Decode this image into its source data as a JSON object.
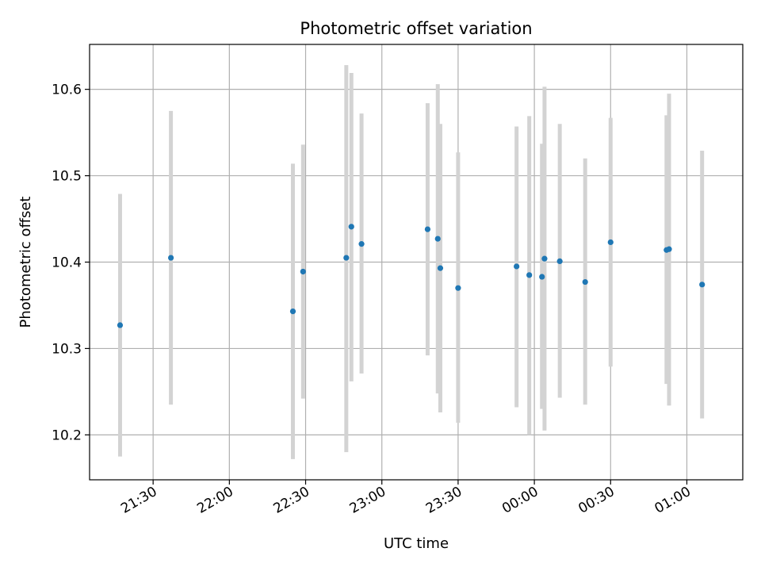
{
  "chart_data": {
    "type": "scatter",
    "title": "Photometric offset variation",
    "xlabel": "UTC time",
    "ylabel": "Photometric offset",
    "grid": true,
    "xlim": [
      "21:05",
      "01:22"
    ],
    "ylim": [
      10.148,
      10.652
    ],
    "xticks": [
      "21:30",
      "22:00",
      "22:30",
      "23:00",
      "23:30",
      "00:00",
      "00:30",
      "01:00"
    ],
    "yticks": [
      10.2,
      10.3,
      10.4,
      10.5,
      10.6
    ],
    "colors": {
      "point": "#1f77b4",
      "errorbar": "#d3d3d3",
      "grid": "#b0b0b0"
    },
    "points": [
      {
        "x": "21:17",
        "y": 10.327,
        "ylow": 10.175,
        "yhigh": 10.479
      },
      {
        "x": "21:37",
        "y": 10.405,
        "ylow": 10.235,
        "yhigh": 10.575
      },
      {
        "x": "22:25",
        "y": 10.343,
        "ylow": 10.172,
        "yhigh": 10.514
      },
      {
        "x": "22:29",
        "y": 10.389,
        "ylow": 10.242,
        "yhigh": 10.536
      },
      {
        "x": "22:46",
        "y": 10.405,
        "ylow": 10.18,
        "yhigh": 10.628
      },
      {
        "x": "22:48",
        "y": 10.441,
        "ylow": 10.262,
        "yhigh": 10.619
      },
      {
        "x": "22:52",
        "y": 10.421,
        "ylow": 10.271,
        "yhigh": 10.572
      },
      {
        "x": "23:18",
        "y": 10.438,
        "ylow": 10.292,
        "yhigh": 10.584
      },
      {
        "x": "23:22",
        "y": 10.427,
        "ylow": 10.248,
        "yhigh": 10.606
      },
      {
        "x": "23:23",
        "y": 10.393,
        "ylow": 10.226,
        "yhigh": 10.56
      },
      {
        "x": "23:30",
        "y": 10.37,
        "ylow": 10.214,
        "yhigh": 10.527
      },
      {
        "x": "23:53",
        "y": 10.395,
        "ylow": 10.232,
        "yhigh": 10.557
      },
      {
        "x": "23:58",
        "y": 10.385,
        "ylow": 10.2,
        "yhigh": 10.569
      },
      {
        "x": "00:03",
        "y": 10.383,
        "ylow": 10.23,
        "yhigh": 10.537
      },
      {
        "x": "00:04",
        "y": 10.404,
        "ylow": 10.205,
        "yhigh": 10.603
      },
      {
        "x": "00:10",
        "y": 10.401,
        "ylow": 10.243,
        "yhigh": 10.56
      },
      {
        "x": "00:20",
        "y": 10.377,
        "ylow": 10.235,
        "yhigh": 10.52
      },
      {
        "x": "00:30",
        "y": 10.423,
        "ylow": 10.279,
        "yhigh": 10.567
      },
      {
        "x": "00:52",
        "y": 10.414,
        "ylow": 10.259,
        "yhigh": 10.57
      },
      {
        "x": "00:53",
        "y": 10.415,
        "ylow": 10.234,
        "yhigh": 10.595
      },
      {
        "x": "01:06",
        "y": 10.374,
        "ylow": 10.219,
        "yhigh": 10.529
      }
    ]
  }
}
